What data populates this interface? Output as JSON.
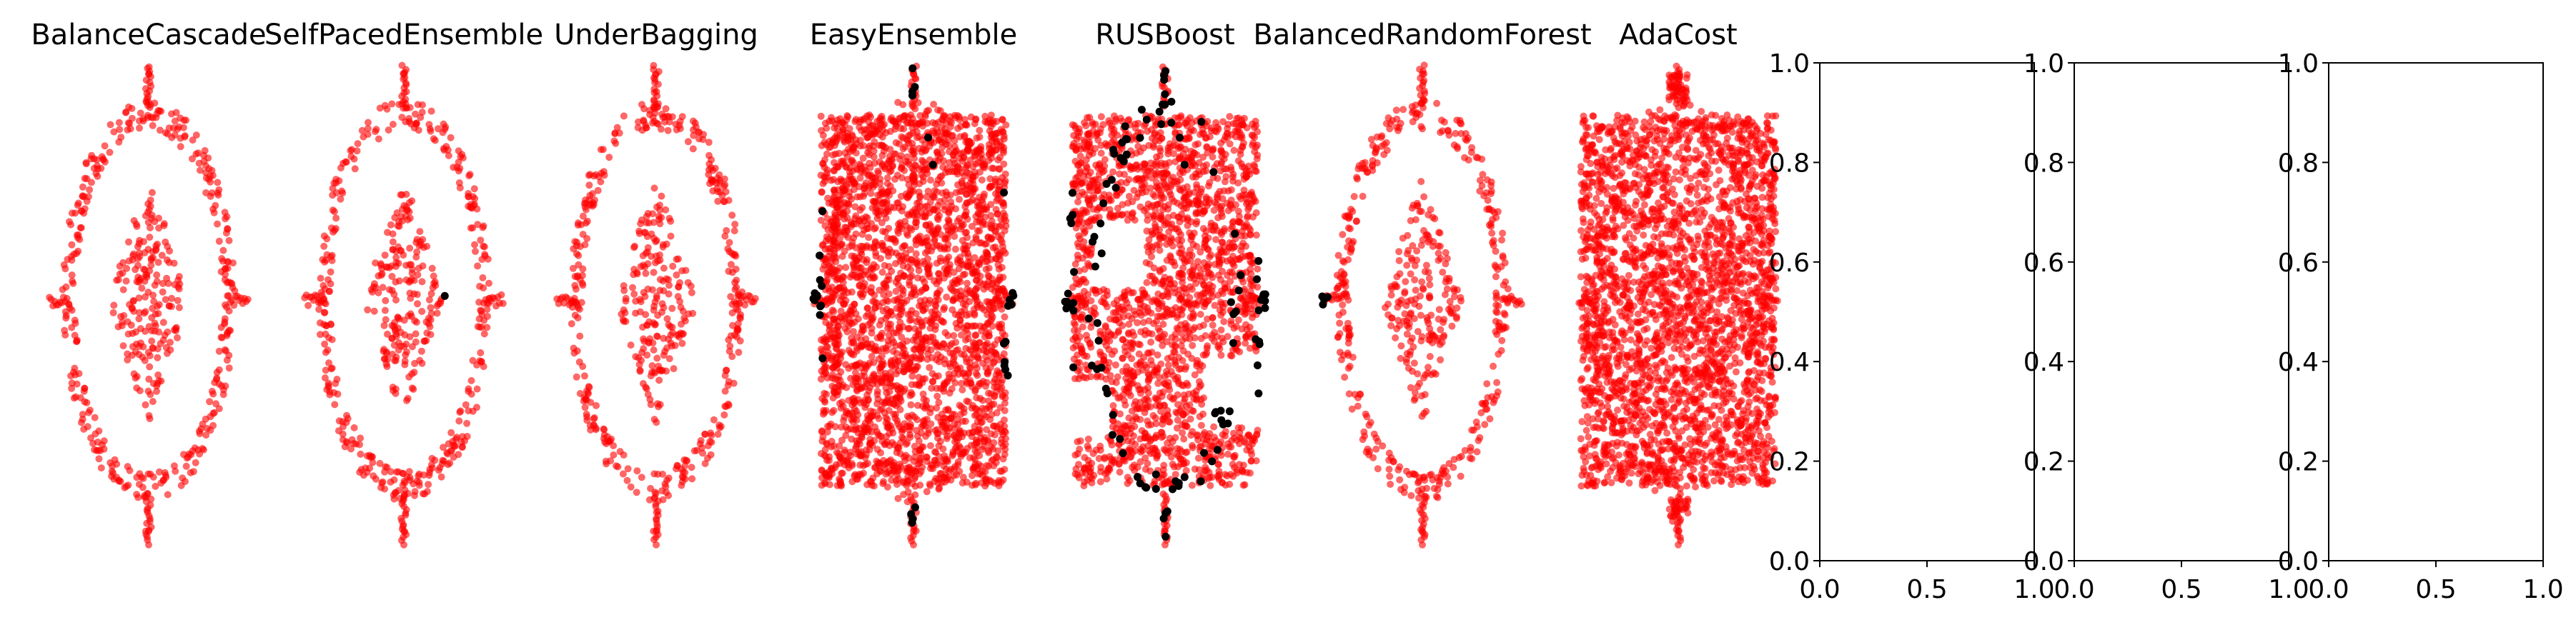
{
  "figure": {
    "background": "#ffffff",
    "point_color": "#ff0000",
    "misclassified_color": "#000000",
    "point_opacity": 0.6
  },
  "chart_data": [
    {
      "type": "scatter",
      "title": "BalanceCascade",
      "axis_visible": false,
      "pattern": "ellipse",
      "black_points": "none",
      "xlim": [
        -1.1,
        1.1
      ],
      "ylim": [
        -1.15,
        1.05
      ]
    },
    {
      "type": "scatter",
      "title": "SelfPacedEnsemble",
      "axis_visible": false,
      "pattern": "ellipse",
      "black_points": "single",
      "xlim": [
        -1.1,
        1.1
      ],
      "ylim": [
        -1.15,
        1.05
      ]
    },
    {
      "type": "scatter",
      "title": "UnderBagging",
      "axis_visible": false,
      "pattern": "ellipse",
      "black_points": "none",
      "xlim": [
        -1.1,
        1.1
      ],
      "ylim": [
        -1.15,
        1.05
      ]
    },
    {
      "type": "scatter",
      "title": "EasyEnsemble",
      "axis_visible": false,
      "pattern": "dense-box",
      "black_points": "edges",
      "xlim": [
        -1.1,
        1.1
      ],
      "ylim": [
        -1.15,
        1.05
      ]
    },
    {
      "type": "scatter",
      "title": "RUSBoost",
      "axis_visible": false,
      "pattern": "blocky",
      "black_points": "many",
      "xlim": [
        -1.1,
        1.1
      ],
      "ylim": [
        -1.15,
        1.05
      ]
    },
    {
      "type": "scatter",
      "title": "BalancedRandomForest",
      "axis_visible": false,
      "pattern": "ellipse",
      "black_points": "left",
      "xlim": [
        -1.1,
        1.1
      ],
      "ylim": [
        -1.15,
        1.05
      ]
    },
    {
      "type": "scatter",
      "title": "AdaCost",
      "axis_visible": false,
      "pattern": "dense-box-wide",
      "black_points": "none",
      "xlim": [
        -1.1,
        1.1
      ],
      "ylim": [
        -1.15,
        1.05
      ]
    },
    {
      "type": "scatter",
      "title": "",
      "axis_visible": true,
      "empty": true,
      "xlim": [
        0.0,
        1.0
      ],
      "ylim": [
        0.0,
        1.0
      ],
      "xticks": [
        "0.0",
        "0.5",
        "1.0"
      ],
      "yticks": [
        "0.0",
        "0.2",
        "0.4",
        "0.6",
        "0.8",
        "1.0"
      ]
    },
    {
      "type": "scatter",
      "title": "",
      "axis_visible": true,
      "empty": true,
      "xlim": [
        0.0,
        1.0
      ],
      "ylim": [
        0.0,
        1.0
      ],
      "xticks": [
        "0.0",
        "0.5",
        "1.0"
      ],
      "yticks": [
        "0.0",
        "0.2",
        "0.4",
        "0.6",
        "0.8",
        "1.0"
      ]
    },
    {
      "type": "scatter",
      "title": "",
      "axis_visible": true,
      "empty": true,
      "xlim": [
        0.0,
        1.0
      ],
      "ylim": [
        0.0,
        1.0
      ],
      "xticks": [
        "0.0",
        "0.5",
        "1.0"
      ],
      "yticks": [
        "0.0",
        "0.2",
        "0.4",
        "0.6",
        "0.8",
        "1.0"
      ]
    }
  ]
}
